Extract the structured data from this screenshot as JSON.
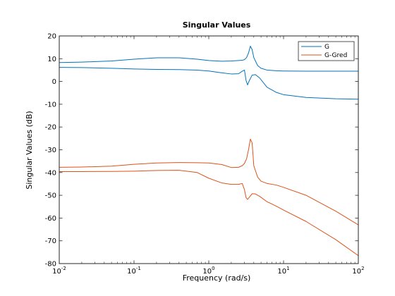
{
  "chart_data": {
    "type": "line",
    "title": "Singular Values",
    "xlabel": "Frequency (rad/s)",
    "ylabel": "Singular Values (dB)",
    "xscale": "log",
    "xlim": [
      0.01,
      100
    ],
    "ylim": [
      -80,
      20
    ],
    "x_ticks": [
      {
        "value": 0.01,
        "base": "10",
        "exp": "-2"
      },
      {
        "value": 0.1,
        "base": "10",
        "exp": "-1"
      },
      {
        "value": 1,
        "base": "10",
        "exp": "0"
      },
      {
        "value": 10,
        "base": "10",
        "exp": "1"
      },
      {
        "value": 100,
        "base": "10",
        "exp": "2"
      }
    ],
    "y_ticks": [
      20,
      10,
      0,
      -10,
      -20,
      -30,
      -40,
      -50,
      -60,
      -70,
      -80
    ],
    "grid": false,
    "legend": {
      "position": "top-right",
      "entries": [
        "G",
        "G-Gred"
      ]
    },
    "series": [
      {
        "name": "G",
        "color": "#0072BD",
        "lines": [
          {
            "x": [
              0.01,
              0.02,
              0.05,
              0.1,
              0.2,
              0.4,
              0.7,
              1,
              1.5,
              2,
              2.5,
              2.8,
              3,
              3.2,
              3.4,
              3.6,
              3.8,
              4,
              4.5,
              5,
              6,
              8,
              10,
              20,
              50,
              100
            ],
            "y": [
              8.3,
              8.5,
              9.0,
              9.8,
              10.4,
              10.4,
              9.8,
              9.2,
              8.9,
              9.0,
              9.2,
              9.3,
              9.6,
              10.5,
              12.5,
              15.5,
              14.0,
              10.5,
              7.0,
              5.8,
              5.0,
              4.7,
              4.6,
              4.5,
              4.5,
              4.5
            ]
          },
          {
            "x": [
              0.01,
              0.02,
              0.05,
              0.1,
              0.2,
              0.4,
              0.7,
              1,
              1.5,
              2,
              2.5,
              2.8,
              3,
              3.15,
              3.3,
              3.5,
              3.8,
              4.2,
              4.8,
              6,
              8,
              10,
              20,
              50,
              100
            ],
            "y": [
              6.2,
              6.1,
              5.8,
              5.5,
              5.3,
              5.2,
              5.0,
              4.6,
              3.8,
              3.3,
              3.4,
              4.5,
              5.0,
              0.5,
              -1.5,
              0.5,
              2.8,
              3.0,
              1.5,
              -2.5,
              -4.8,
              -5.8,
              -7.0,
              -7.6,
              -7.8
            ]
          }
        ]
      },
      {
        "name": "G-Gred",
        "color": "#D95319",
        "lines": [
          {
            "x": [
              0.01,
              0.02,
              0.05,
              0.1,
              0.2,
              0.4,
              0.7,
              1,
              1.5,
              2,
              2.5,
              2.8,
              3,
              3.2,
              3.4,
              3.6,
              3.8,
              4,
              4.5,
              5,
              6,
              8,
              10,
              20,
              50,
              100
            ],
            "y": [
              -37.7,
              -37.6,
              -37.2,
              -36.4,
              -35.8,
              -35.6,
              -35.7,
              -35.8,
              -36.5,
              -37.8,
              -37.7,
              -37.0,
              -36.0,
              -34.0,
              -30.0,
              -25.3,
              -27.0,
              -37.0,
              -42.0,
              -43.8,
              -44.8,
              -45.5,
              -46.5,
              -50.0,
              -57.0,
              -63.0
            ]
          },
          {
            "x": [
              0.01,
              0.02,
              0.05,
              0.1,
              0.2,
              0.4,
              0.7,
              1,
              1.5,
              2,
              2.5,
              2.8,
              3,
              3.15,
              3.3,
              3.5,
              3.8,
              4.2,
              4.8,
              6,
              8,
              10,
              20,
              50,
              100
            ],
            "y": [
              -39.6,
              -39.6,
              -39.5,
              -39.4,
              -39.1,
              -39.0,
              -40.0,
              -42.5,
              -44.6,
              -45.2,
              -45.2,
              -44.8,
              -47.5,
              -51.0,
              -51.8,
              -50.8,
              -49.3,
              -49.4,
              -50.5,
              -52.8,
              -54.8,
              -56.5,
              -61.5,
              -69.5,
              -76.5
            ]
          }
        ]
      }
    ]
  }
}
